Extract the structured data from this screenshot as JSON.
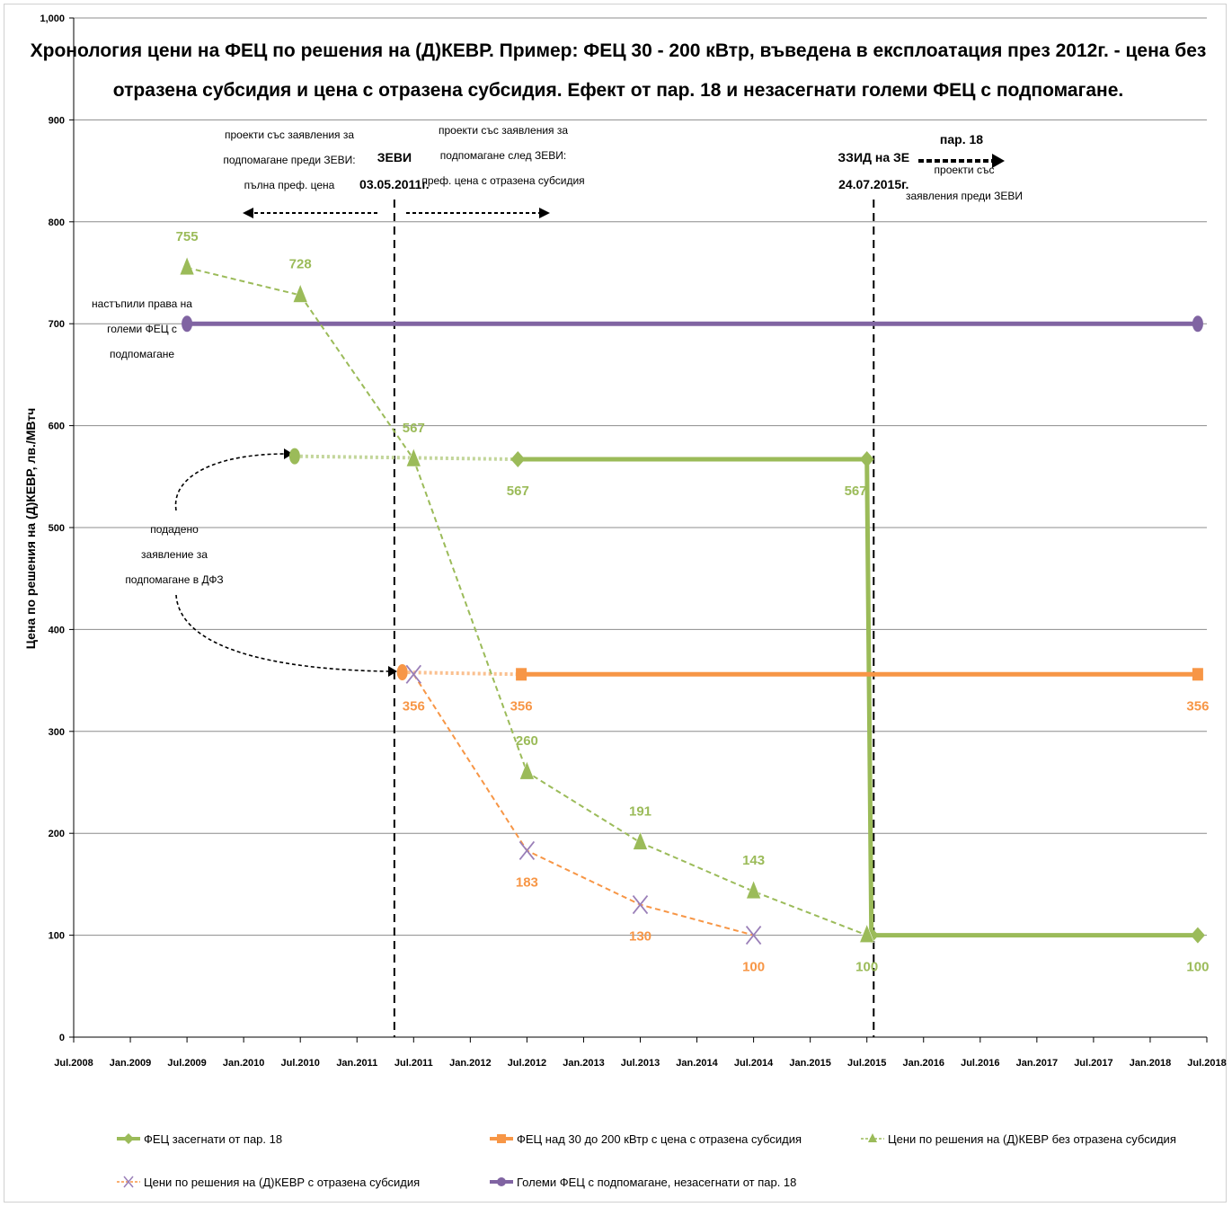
{
  "chart_data": {
    "type": "line",
    "title_lines": [
      "Хронология цени на ФЕЦ по решения на (Д)КЕВР. Пример: ФЕЦ 30 - 200 кВтр, въведена в експлоатация през 2012г. - цена без",
      "отразена субсидия и цена с отразена субсидия. Ефект от пар. 18 и незасегнати големи ФЕЦ с подпомагане."
    ],
    "ylabel": "Цена по решения на (Д)КЕВР, лв./МВтч",
    "xlabel": "",
    "ylim": [
      0,
      1000
    ],
    "yticks": [
      0,
      100,
      200,
      300,
      400,
      500,
      600,
      700,
      800,
      900,
      1000
    ],
    "ytick_labels": [
      "0",
      "100",
      "200",
      "300",
      "400",
      "500",
      "600",
      "700",
      "800",
      "900",
      "1,000"
    ],
    "xlim": [
      2008.5,
      2018.5
    ],
    "xticks": [
      2008.5,
      2009.0,
      2009.5,
      2010.0,
      2010.5,
      2011.0,
      2011.5,
      2012.0,
      2012.5,
      2013.0,
      2013.5,
      2014.0,
      2014.5,
      2015.0,
      2015.5,
      2016.0,
      2016.5,
      2017.0,
      2017.5,
      2018.0,
      2018.5
    ],
    "xtick_labels": [
      "Jul.2008",
      "Jan.2009",
      "Jul.2009",
      "Jan.2010",
      "Jul.2010",
      "Jan.2011",
      "Jul.2011",
      "Jan.2012",
      "Jul.2012",
      "Jan.2013",
      "Jul.2013",
      "Jan.2014",
      "Jul.2014",
      "Jan.2015",
      "Jul.2015",
      "Jan.2016",
      "Jul.2016",
      "Jan.2017",
      "Jul.2017",
      "Jan.2018",
      "Jul.2018"
    ],
    "grid": true,
    "legend_position": "bottom",
    "series": [
      {
        "name": "ФЕЦ засегнати от пар. 18",
        "color": "#9bbb59",
        "style": "solid",
        "marker": "diamond",
        "points": [
          [
            2012.42,
            567
          ],
          [
            2015.5,
            567
          ],
          [
            2015.54,
            100
          ],
          [
            2018.42,
            100
          ]
        ],
        "labels": [
          {
            "text": "567",
            "x": 2012.42,
            "y": 567,
            "pos": "below"
          },
          {
            "text": "567",
            "x": 2015.4,
            "y": 567,
            "pos": "below"
          },
          {
            "text": "100",
            "x": 2015.5,
            "y": 100,
            "pos": "below"
          },
          {
            "text": "100",
            "x": 2018.42,
            "y": 100,
            "pos": "below"
          }
        ]
      },
      {
        "name": "ФЕЦ засегнати от пар. 18 (преди)",
        "color": "#c3d69b",
        "style": "dotted",
        "marker": "circle-start",
        "legend": false,
        "points": [
          [
            2010.45,
            570
          ],
          [
            2012.42,
            567
          ]
        ]
      },
      {
        "name": "ФЕЦ над 30 до 200 кВтр с цена с отразена субсидия",
        "color": "#f79646",
        "style": "solid",
        "marker": "square",
        "points": [
          [
            2012.45,
            356
          ],
          [
            2018.42,
            356
          ]
        ],
        "labels": [
          {
            "text": "356",
            "x": 2012.45,
            "y": 356,
            "pos": "below"
          },
          {
            "text": "356",
            "x": 2018.42,
            "y": 356,
            "pos": "below"
          }
        ]
      },
      {
        "name": "ФЕЦ над 30 до 200 кВтр (преди)",
        "color": "#fac090",
        "style": "dotted",
        "marker": "circle-start",
        "legend": false,
        "points": [
          [
            2011.4,
            358
          ],
          [
            2012.45,
            356
          ]
        ]
      },
      {
        "name": "Цени по решения на (Д)КЕВР без отразена субсидия",
        "color": "#9bbb59",
        "style": "dashed",
        "marker": "triangle",
        "points": [
          [
            2009.5,
            755
          ],
          [
            2010.5,
            728
          ],
          [
            2011.5,
            567
          ],
          [
            2012.5,
            260
          ],
          [
            2013.5,
            191
          ],
          [
            2014.5,
            143
          ],
          [
            2015.5,
            100
          ]
        ],
        "labels": [
          {
            "text": "755",
            "x": 2009.5,
            "y": 755,
            "pos": "above"
          },
          {
            "text": "728",
            "x": 2010.5,
            "y": 728,
            "pos": "above"
          },
          {
            "text": "567",
            "x": 2011.5,
            "y": 567,
            "pos": "above"
          },
          {
            "text": "260",
            "x": 2012.5,
            "y": 260,
            "pos": "above"
          },
          {
            "text": "191",
            "x": 2013.5,
            "y": 191,
            "pos": "above"
          },
          {
            "text": "143",
            "x": 2014.5,
            "y": 143,
            "pos": "above"
          }
        ]
      },
      {
        "name": "Цени по решения на (Д)КЕВР с отразена субсидия",
        "color": "#f79646",
        "style": "dashed",
        "marker": "x",
        "points": [
          [
            2011.5,
            356
          ],
          [
            2012.5,
            183
          ],
          [
            2013.5,
            130
          ],
          [
            2014.5,
            100
          ]
        ],
        "labels": [
          {
            "text": "356",
            "x": 2011.5,
            "y": 356,
            "pos": "below"
          },
          {
            "text": "183",
            "x": 2012.5,
            "y": 183,
            "pos": "below"
          },
          {
            "text": "130",
            "x": 2013.5,
            "y": 130,
            "pos": "below"
          },
          {
            "text": "100",
            "x": 2014.5,
            "y": 100,
            "pos": "below"
          }
        ]
      },
      {
        "name": "Големи ФЕЦ с подпомагане, незасегнати от пар. 18",
        "color": "#8064a2",
        "style": "solid",
        "marker": "circle",
        "points": [
          [
            2009.5,
            700
          ],
          [
            2018.42,
            700
          ]
        ]
      }
    ],
    "vlines": [
      {
        "x": 2011.33,
        "label_lines": [
          "ЗЕВИ",
          "03.05.2011г."
        ]
      },
      {
        "x": 2015.56,
        "label_lines": [
          "ЗЗИД на ЗЕ",
          "24.07.2015г."
        ]
      }
    ],
    "annotations": [
      {
        "id": "before",
        "lines": [
          "проекти със заявления за",
          "подпомагане  преди ЗЕВИ:",
          "пълна преф. цена"
        ]
      },
      {
        "id": "after",
        "lines": [
          "проекти със заявления за",
          "подпомагане  след ЗЕВИ:",
          "преф. цена с отразена субсидия"
        ]
      },
      {
        "id": "par18-title",
        "lines": [
          "пар. 18"
        ]
      },
      {
        "id": "par18",
        "lines": [
          "проекти със",
          "заявления преди ЗЕВИ"
        ]
      },
      {
        "id": "big",
        "lines": [
          "настъпили права на",
          "големи ФЕЦ с",
          "подпомагане"
        ]
      },
      {
        "id": "applied",
        "lines": [
          "подадено",
          "заявление за",
          "подпомагане в ДФЗ"
        ]
      }
    ],
    "legend_order": [
      [
        "ФЕЦ засегнати от пар. 18",
        "ФЕЦ над 30 до 200 кВтр с цена с отразена субсидия",
        "Цени по решения на (Д)КЕВР без отразена субсидия"
      ],
      [
        "Цени по решения на (Д)КЕВР с отразена субсидия",
        "Големи ФЕЦ с подпомагане, незасегнати от пар. 18"
      ]
    ]
  }
}
